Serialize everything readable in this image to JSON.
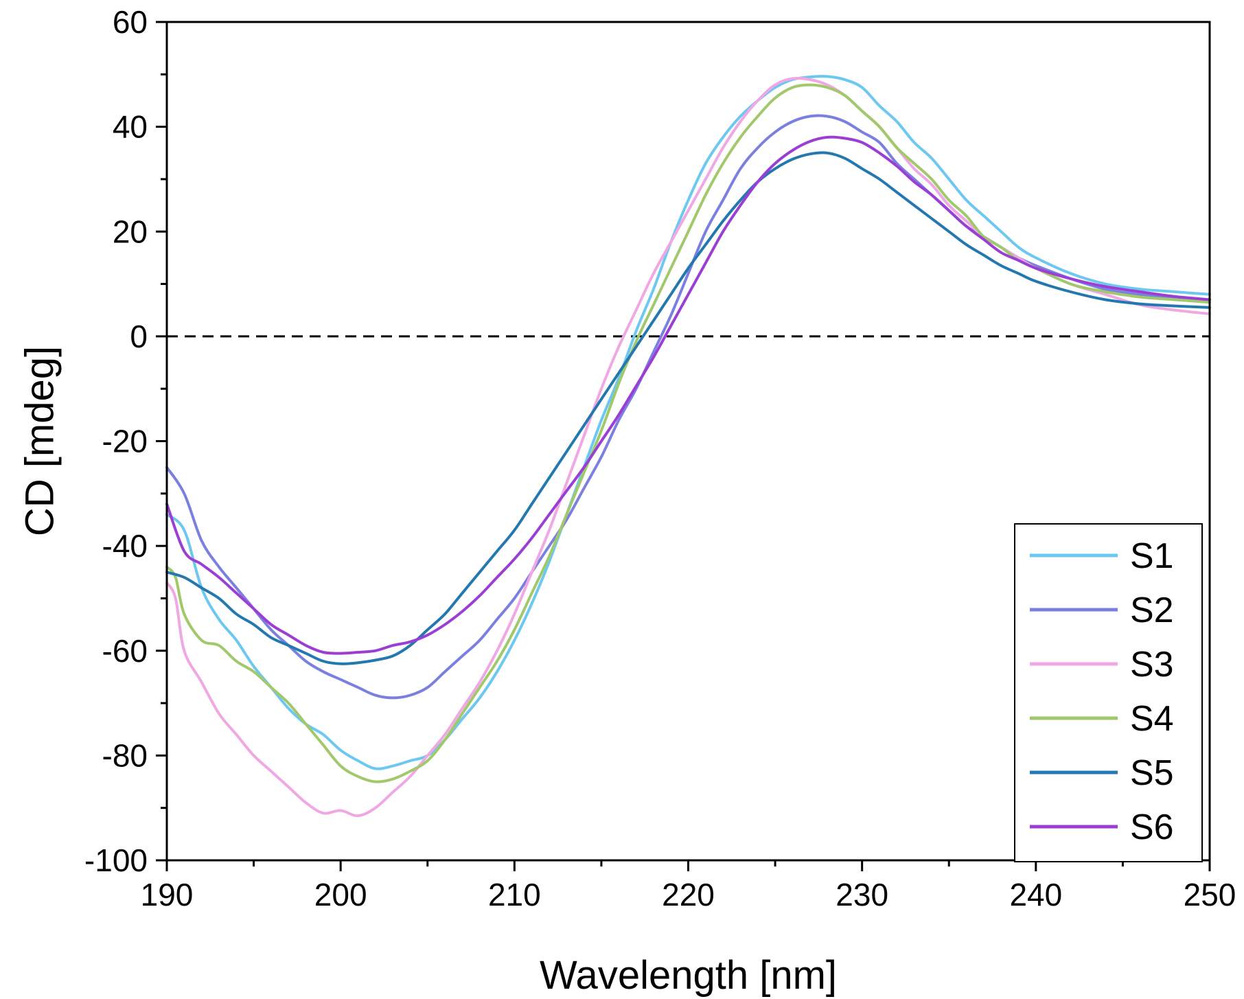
{
  "chart_data": {
    "type": "line",
    "title": "",
    "xlabel": "Wavelength [nm]",
    "ylabel": "CD [mdeg]",
    "xlim": [
      190,
      250
    ],
    "ylim": [
      -100,
      60
    ],
    "xticks": [
      190,
      200,
      210,
      220,
      230,
      240,
      250
    ],
    "yticks": [
      -100,
      -80,
      -60,
      -40,
      -20,
      0,
      20,
      40,
      60
    ],
    "xtick_labels": [
      "190",
      "200",
      "210",
      "220",
      "230",
      "240",
      "250"
    ],
    "ytick_labels": [
      "-100",
      "-80",
      "-60",
      "-40",
      "-20",
      "0",
      "20",
      "40",
      "60"
    ],
    "zero_line": {
      "y": 0,
      "style": "dashed"
    },
    "legend_position": "bottom-right",
    "series": [
      {
        "name": "S1",
        "color": "#6cc8f0",
        "x": [
          190,
          191,
          192,
          193,
          194,
          195,
          196,
          197,
          198,
          199,
          200,
          201,
          202,
          203,
          204,
          205,
          206,
          207,
          208,
          209,
          210,
          211,
          212,
          213,
          214,
          215,
          216,
          217,
          218,
          219,
          220,
          221,
          222,
          223,
          224,
          225,
          226,
          227,
          228,
          229,
          230,
          231,
          232,
          233,
          234,
          235,
          236,
          237,
          238,
          239,
          240,
          242,
          244,
          246,
          248,
          250
        ],
        "y": [
          -34,
          -37,
          -48,
          -54,
          -58,
          -63,
          -67,
          -71,
          -74,
          -76,
          -79,
          -81,
          -82.5,
          -82,
          -81,
          -80,
          -77,
          -73,
          -69,
          -64,
          -58,
          -51,
          -43,
          -34,
          -25,
          -16,
          -8,
          1,
          9,
          18,
          26,
          33,
          38,
          42,
          45,
          47.5,
          49,
          49.5,
          49.6,
          49,
          47.5,
          44,
          41,
          37,
          34,
          30,
          26,
          23,
          20,
          17,
          15,
          12,
          10,
          9,
          8.5,
          8
        ]
      },
      {
        "name": "S2",
        "color": "#7b80e0",
        "x": [
          190,
          191,
          192,
          193,
          194,
          195,
          196,
          197,
          198,
          199,
          200,
          201,
          202,
          203,
          204,
          205,
          206,
          207,
          208,
          209,
          210,
          211,
          212,
          213,
          214,
          215,
          216,
          217,
          218,
          219,
          220,
          221,
          222,
          223,
          224,
          225,
          226,
          227,
          228,
          229,
          230,
          231,
          232,
          233,
          234,
          235,
          236,
          237,
          238,
          239,
          240,
          242,
          244,
          246,
          248,
          250
        ],
        "y": [
          -25,
          -30,
          -39,
          -44,
          -48,
          -52,
          -56,
          -59,
          -62,
          -64,
          -65.5,
          -67,
          -68.5,
          -69,
          -68.5,
          -67,
          -64,
          -61,
          -58,
          -54,
          -50,
          -45,
          -40,
          -35,
          -29,
          -23,
          -16,
          -10,
          -3,
          4,
          12,
          20,
          26,
          32,
          36,
          39,
          41,
          42,
          42,
          41,
          39,
          37,
          33,
          30,
          27,
          24,
          21,
          19,
          17,
          15,
          13.5,
          11,
          9,
          8,
          7.5,
          7
        ]
      },
      {
        "name": "S3",
        "color": "#f0a8e4",
        "x": [
          190,
          190.5,
          191,
          192,
          193,
          194,
          195,
          196,
          197,
          198,
          199,
          200,
          201,
          202,
          203,
          204,
          205,
          206,
          207,
          208,
          209,
          210,
          211,
          212,
          213,
          214,
          215,
          216,
          217,
          218,
          219,
          220,
          221,
          222,
          223,
          224,
          225,
          226,
          227,
          228,
          229,
          230,
          231,
          232,
          233,
          234,
          235,
          236,
          237,
          238,
          239,
          240,
          242,
          244,
          246,
          248,
          250
        ],
        "y": [
          -47,
          -50,
          -60,
          -66,
          -72,
          -76,
          -80,
          -83,
          -86,
          -89,
          -91,
          -90.5,
          -91.5,
          -90,
          -87,
          -84,
          -80,
          -76,
          -71,
          -66,
          -60,
          -53,
          -45,
          -37,
          -28,
          -19,
          -10,
          -2,
          5,
          12,
          18,
          24,
          30,
          36,
          41,
          45,
          48,
          49.2,
          49,
          48,
          46,
          43,
          40,
          36,
          32,
          29,
          25,
          22,
          19,
          17,
          15,
          13,
          10,
          8,
          6,
          5,
          4.3
        ]
      },
      {
        "name": "S4",
        "color": "#a2c86c",
        "x": [
          190,
          190.5,
          191,
          192,
          193,
          194,
          195,
          196,
          197,
          198,
          199,
          200,
          201,
          202,
          203,
          204,
          205,
          206,
          207,
          208,
          209,
          210,
          211,
          212,
          213,
          214,
          215,
          216,
          217,
          218,
          219,
          220,
          221,
          222,
          223,
          224,
          225,
          226,
          227,
          228,
          229,
          230,
          231,
          232,
          233,
          234,
          235,
          236,
          237,
          238,
          239,
          240,
          242,
          244,
          246,
          248,
          250
        ],
        "y": [
          -44,
          -46,
          -53,
          -58,
          -59,
          -62,
          -64,
          -67,
          -70,
          -74,
          -78,
          -82,
          -84,
          -85,
          -84.5,
          -83,
          -81,
          -77,
          -72,
          -67,
          -62,
          -56,
          -49,
          -42,
          -34,
          -26,
          -18,
          -9,
          -1,
          6,
          13,
          20,
          27,
          33,
          38,
          42,
          45.5,
          47.5,
          48,
          47.5,
          46,
          43,
          40,
          36,
          33,
          30,
          26,
          23,
          19,
          17,
          14.5,
          13,
          10,
          8.5,
          7.5,
          7,
          6.5
        ]
      },
      {
        "name": "S5",
        "color": "#2478b0",
        "x": [
          190,
          191,
          192,
          193,
          194,
          195,
          196,
          197,
          198,
          199,
          200,
          201,
          202,
          203,
          204,
          205,
          206,
          207,
          208,
          209,
          210,
          211,
          212,
          213,
          214,
          215,
          216,
          217,
          218,
          219,
          220,
          221,
          222,
          223,
          224,
          225,
          226,
          227,
          228,
          229,
          230,
          231,
          232,
          233,
          234,
          235,
          236,
          237,
          238,
          239,
          240,
          242,
          244,
          246,
          248,
          250
        ],
        "y": [
          -45,
          -46,
          -48,
          -50,
          -53,
          -55,
          -57.5,
          -59,
          -60.5,
          -62,
          -62.5,
          -62.3,
          -61.8,
          -61,
          -59,
          -56,
          -53,
          -49,
          -45,
          -41,
          -37,
          -32,
          -27,
          -22,
          -17,
          -12,
          -7,
          -2,
          3,
          8,
          13,
          17.5,
          22,
          26,
          29.5,
          32,
          33.8,
          34.8,
          35,
          34,
          32,
          30,
          27.5,
          25,
          22.5,
          20,
          17.5,
          15.5,
          13.5,
          12,
          10.5,
          8.5,
          7,
          6.2,
          5.8,
          5.5
        ]
      },
      {
        "name": "S6",
        "color": "#9b3fd4",
        "x": [
          190,
          191,
          192,
          193,
          194,
          195,
          196,
          197,
          198,
          199,
          200,
          201,
          202,
          203,
          204,
          205,
          206,
          207,
          208,
          209,
          210,
          211,
          212,
          213,
          214,
          215,
          216,
          217,
          218,
          219,
          220,
          221,
          222,
          223,
          224,
          225,
          226,
          227,
          228,
          229,
          230,
          231,
          232,
          233,
          234,
          235,
          236,
          237,
          238,
          239,
          240,
          242,
          244,
          246,
          248,
          250
        ],
        "y": [
          -32,
          -41,
          -43.5,
          -46,
          -49,
          -52,
          -55,
          -57,
          -59,
          -60.3,
          -60.5,
          -60.3,
          -60,
          -59,
          -58.3,
          -57,
          -55,
          -52.5,
          -49.5,
          -46,
          -42.5,
          -38.5,
          -34,
          -29.5,
          -25,
          -20,
          -15,
          -9.5,
          -4,
          2,
          8,
          14,
          20,
          25,
          29.5,
          33,
          35.5,
          37.2,
          38,
          37.8,
          37,
          35,
          32.5,
          29.5,
          27,
          24,
          21,
          18.5,
          16,
          14.5,
          13,
          11,
          9.5,
          8.5,
          7.6,
          7
        ]
      }
    ]
  }
}
